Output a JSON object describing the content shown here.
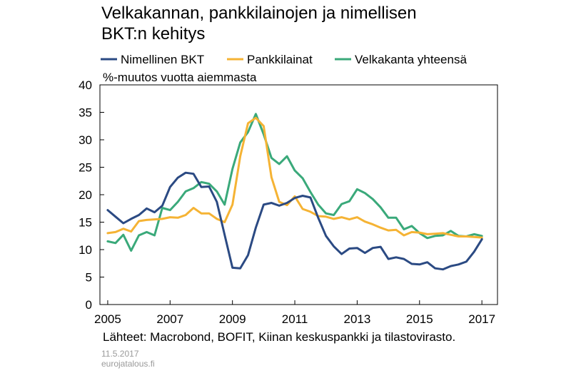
{
  "title_line1": "Velkakannan, pankkilainojen ja nimellisen",
  "title_line2": "BKT:n kehitys",
  "unit_label": "%-muutos vuotta aiemmasta",
  "source": "Lähteet: Macrobond, BOFIT, Kiinan keskuspankki ja tilastovirasto.",
  "footer_date": "11.5.2017",
  "footer_site": "eurojatalous.fi",
  "chart_data": {
    "type": "line",
    "ylim": [
      0,
      40
    ],
    "yticks": [
      0,
      5,
      10,
      15,
      20,
      25,
      30,
      35,
      40
    ],
    "xlim": [
      2004.75,
      2017.5
    ],
    "xticks": [
      2005,
      2007,
      2009,
      2011,
      2013,
      2015,
      2017
    ],
    "xtick_labels": [
      "2005",
      "2007",
      "2009",
      "2011",
      "2013",
      "2015",
      "2017"
    ],
    "grid": false,
    "legend_position": "top",
    "series": [
      {
        "name": "Nimellinen BKT",
        "color": "#2b4a83",
        "x": [
          2005.0,
          2005.25,
          2005.5,
          2005.75,
          2006.0,
          2006.25,
          2006.5,
          2006.75,
          2007.0,
          2007.25,
          2007.5,
          2007.75,
          2008.0,
          2008.25,
          2008.5,
          2008.75,
          2009.0,
          2009.25,
          2009.5,
          2009.75,
          2010.0,
          2010.25,
          2010.5,
          2010.75,
          2011.0,
          2011.25,
          2011.5,
          2011.75,
          2012.0,
          2012.25,
          2012.5,
          2012.75,
          2013.0,
          2013.25,
          2013.5,
          2013.75,
          2014.0,
          2014.25,
          2014.5,
          2014.75,
          2015.0,
          2015.25,
          2015.5,
          2015.75,
          2016.0,
          2016.25,
          2016.5,
          2016.75,
          2017.0
        ],
        "values": [
          17.2,
          16.0,
          14.8,
          15.6,
          16.3,
          17.5,
          16.8,
          18.0,
          21.4,
          23.1,
          24.0,
          23.8,
          21.4,
          21.5,
          18.7,
          12.7,
          6.7,
          6.6,
          9.0,
          14.0,
          18.2,
          18.5,
          18.0,
          18.5,
          19.4,
          19.8,
          19.5,
          15.8,
          12.5,
          10.6,
          9.2,
          10.2,
          10.3,
          9.4,
          10.3,
          10.5,
          8.3,
          8.6,
          8.3,
          7.4,
          7.3,
          7.7,
          6.6,
          6.4,
          7.0,
          7.3,
          7.8,
          9.6,
          11.9
        ]
      },
      {
        "name": "Pankkilainat",
        "color": "#f5b334",
        "x": [
          2005.0,
          2005.25,
          2005.5,
          2005.75,
          2006.0,
          2006.25,
          2006.5,
          2006.75,
          2007.0,
          2007.25,
          2007.5,
          2007.75,
          2008.0,
          2008.25,
          2008.5,
          2008.75,
          2009.0,
          2009.25,
          2009.5,
          2009.75,
          2010.0,
          2010.25,
          2010.5,
          2010.75,
          2011.0,
          2011.25,
          2011.5,
          2011.75,
          2012.0,
          2012.25,
          2012.5,
          2012.75,
          2013.0,
          2013.25,
          2013.5,
          2013.75,
          2014.0,
          2014.25,
          2014.5,
          2014.75,
          2015.0,
          2015.25,
          2015.5,
          2015.75,
          2016.0,
          2016.25,
          2016.5,
          2016.75,
          2017.0
        ],
        "values": [
          13.0,
          13.2,
          13.8,
          13.3,
          15.2,
          15.4,
          15.5,
          15.6,
          15.9,
          15.8,
          16.3,
          17.6,
          16.6,
          16.6,
          15.6,
          15.0,
          18.2,
          27.0,
          33.0,
          34.0,
          32.5,
          23.2,
          18.7,
          18.1,
          19.7,
          17.4,
          16.9,
          16.1,
          16.0,
          15.6,
          15.9,
          15.5,
          15.9,
          15.1,
          14.6,
          14.0,
          13.5,
          13.6,
          12.6,
          13.2,
          13.1,
          12.8,
          12.9,
          13.0,
          12.7,
          12.4,
          12.4,
          12.3,
          12.2
        ]
      },
      {
        "name": "Velkakanta yhteensä",
        "color": "#3aa97a",
        "x": [
          2005.0,
          2005.25,
          2005.5,
          2005.75,
          2006.0,
          2006.25,
          2006.5,
          2006.75,
          2007.0,
          2007.25,
          2007.5,
          2007.75,
          2008.0,
          2008.25,
          2008.5,
          2008.75,
          2009.0,
          2009.25,
          2009.5,
          2009.75,
          2010.0,
          2010.25,
          2010.5,
          2010.75,
          2011.0,
          2011.25,
          2011.5,
          2011.75,
          2012.0,
          2012.25,
          2012.5,
          2012.75,
          2013.0,
          2013.25,
          2013.5,
          2013.75,
          2014.0,
          2014.25,
          2014.5,
          2014.75,
          2015.0,
          2015.25,
          2015.5,
          2015.75,
          2016.0,
          2016.25,
          2016.5,
          2016.75,
          2017.0
        ],
        "values": [
          11.5,
          11.2,
          12.7,
          9.8,
          12.6,
          13.2,
          12.6,
          17.6,
          17.2,
          18.7,
          20.6,
          21.2,
          22.3,
          22.0,
          20.6,
          18.2,
          24.7,
          29.5,
          31.4,
          34.7,
          31.0,
          26.7,
          25.6,
          27.0,
          24.4,
          23.0,
          20.5,
          18.2,
          16.6,
          16.3,
          18.3,
          18.8,
          21.0,
          20.3,
          19.2,
          17.7,
          15.8,
          15.8,
          13.7,
          14.3,
          13.0,
          12.1,
          12.5,
          12.6,
          13.4,
          12.5,
          12.4,
          12.8,
          12.5
        ]
      }
    ]
  }
}
